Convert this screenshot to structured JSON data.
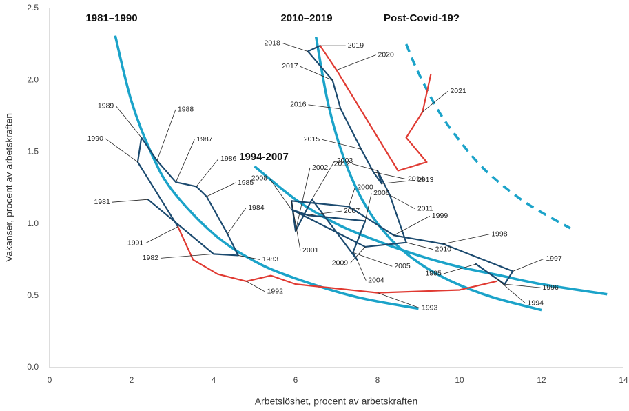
{
  "chart_data": {
    "type": "line",
    "xlabel": "Arbetslöshet, procent av arbetskraften",
    "ylabel": "Vakanser, procent av arbetskraften",
    "annotations": [
      "1981–1990",
      "2010–2019",
      "Post-Covid-19?",
      "1994-2007"
    ],
    "xlim": [
      0,
      14
    ],
    "xticks": [
      0,
      2,
      4,
      6,
      8,
      10,
      12,
      14
    ],
    "ylim": [
      0,
      2.5
    ],
    "yticks": [
      {
        "value": 0,
        "label": "0.0"
      },
      0.5,
      {
        "value": 1,
        "label": "1.0"
      },
      1.5,
      {
        "value": 2,
        "label": "2.0"
      },
      2.5
    ],
    "series": [
      {
        "color": "#1b4a6f",
        "style": "solid",
        "x": [
          2.4,
          4.0,
          4.6,
          4.34,
          3.83,
          3.58,
          3.08,
          2.62,
          2.24,
          2.15,
          3.13
        ],
        "values": [
          1.17,
          0.79,
          0.78,
          0.93,
          1.19,
          1.26,
          1.29,
          1.44,
          1.6,
          1.43,
          0.98
        ],
        "labels": [
          "1981",
          "1982",
          "1983",
          "1984",
          "1985",
          "1986",
          "1987",
          "1988",
          "1989",
          "1990",
          "1991"
        ]
      },
      {
        "color": "#e03a32",
        "style": "solid",
        "x": [
          3.13,
          3.5,
          4.1,
          4.8,
          5.4,
          6.0,
          8.0,
          10.0,
          10.9
        ],
        "values": [
          0.98,
          0.75,
          0.65,
          0.6,
          0.64,
          0.58,
          0.52,
          0.54,
          0.6
        ],
        "labels": [
          null,
          null,
          null,
          "1992",
          null,
          null,
          "1993",
          null,
          null
        ]
      },
      {
        "color": "#1b4a6f",
        "style": "solid",
        "x": [
          10.9,
          10.4,
          11.1,
          11.3,
          9.6,
          8.4,
          7.3,
          5.9,
          6.0,
          6.4,
          7.5,
          7.4,
          7.7,
          6.3,
          5.9,
          7.7,
          8.7,
          8.3,
          8.0,
          8.1,
          7.9,
          7.6,
          7.1,
          6.9,
          6.3,
          6.6
        ],
        "values": [
          0.62,
          0.72,
          0.58,
          0.67,
          0.86,
          0.92,
          1.12,
          1.16,
          0.95,
          1.17,
          0.75,
          0.8,
          1.02,
          1.06,
          1.1,
          0.84,
          0.87,
          1.2,
          1.37,
          1.28,
          1.36,
          1.52,
          1.8,
          2.0,
          2.2,
          2.24
        ],
        "labels": [
          "1994",
          "1995",
          "1996",
          "1997",
          "1998",
          "1999",
          "2000",
          "2001",
          "2002",
          "2003",
          "2004",
          "2005",
          "2006",
          "2007",
          "2008",
          "2009",
          "2010",
          "2011",
          "2012",
          "2013",
          "2014",
          "2015",
          "2016",
          "2017",
          "2018",
          "2019"
        ]
      },
      {
        "color": "#e03a32",
        "style": "solid",
        "x": [
          6.6,
          7.0,
          8.5,
          9.2,
          8.7,
          9.1,
          9.3
        ],
        "values": [
          2.24,
          2.07,
          1.37,
          1.43,
          1.6,
          1.78,
          2.04
        ],
        "labels": [
          null,
          "2020",
          null,
          null,
          null,
          "2021",
          null
        ]
      },
      {
        "color": "#1ba3c9",
        "style": "fit",
        "x": [
          1.6,
          2,
          2.5,
          3,
          4,
          5,
          6,
          7.5,
          9
        ],
        "values": [
          2.31,
          1.85,
          1.48,
          1.23,
          0.93,
          0.74,
          0.62,
          0.49,
          0.41
        ]
      },
      {
        "color": "#1ba3c9",
        "style": "fit",
        "x": [
          5,
          6,
          7,
          8,
          9,
          10,
          11,
          12,
          13.6
        ],
        "values": [
          1.4,
          1.17,
          1.0,
          0.88,
          0.78,
          0.7,
          0.64,
          0.58,
          0.51
        ]
      },
      {
        "color": "#1ba3c9",
        "style": "fit",
        "x": [
          6.5,
          6.8,
          7.2,
          7.7,
          8.3,
          9,
          9.8,
          10.8,
          12
        ],
        "values": [
          2.3,
          1.83,
          1.44,
          1.13,
          0.9,
          0.73,
          0.6,
          0.49,
          0.4
        ]
      },
      {
        "color": "#1ba3c9",
        "style": "dashed",
        "x": [
          8.7,
          9,
          9.5,
          10,
          10.5,
          11,
          11.5,
          12,
          12.7
        ],
        "values": [
          2.25,
          2.05,
          1.78,
          1.58,
          1.41,
          1.28,
          1.17,
          1.08,
          0.97
        ]
      }
    ]
  }
}
